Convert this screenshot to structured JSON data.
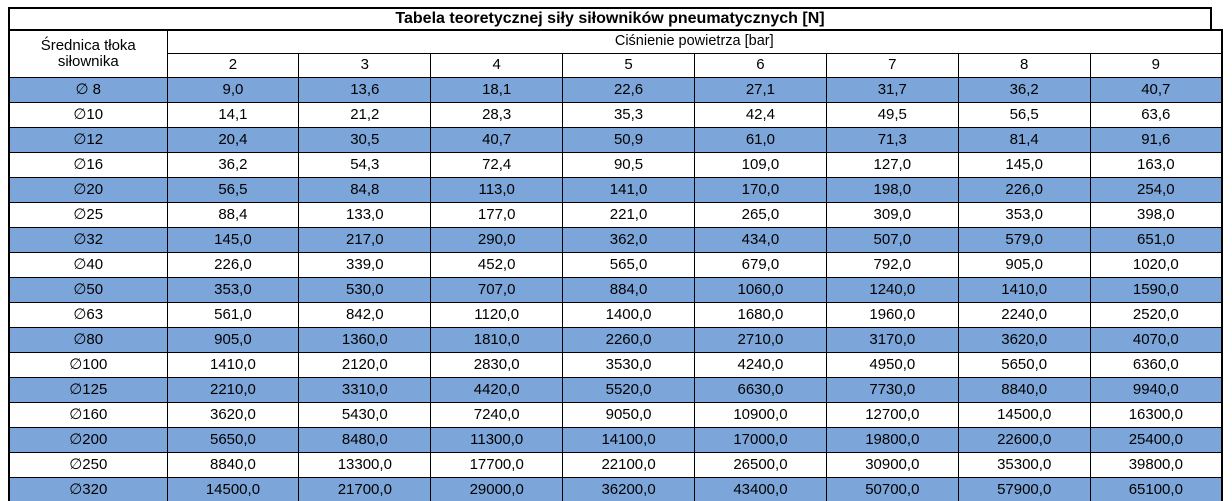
{
  "title": "Tabela teoretycznej siły siłowników pneumatycznych [N]",
  "table": {
    "row_header": "Średnica tłoka siłownika",
    "col_group_header": "Ciśnienie powietrza [bar]",
    "pressures": [
      "2",
      "3",
      "4",
      "5",
      "6",
      "7",
      "8",
      "9"
    ],
    "rows": [
      {
        "diameter": "∅ 8",
        "values": [
          "9,0",
          "13,6",
          "18,1",
          "22,6",
          "27,1",
          "31,7",
          "36,2",
          "40,7"
        ]
      },
      {
        "diameter": "∅10",
        "values": [
          "14,1",
          "21,2",
          "28,3",
          "35,3",
          "42,4",
          "49,5",
          "56,5",
          "63,6"
        ]
      },
      {
        "diameter": "∅12",
        "values": [
          "20,4",
          "30,5",
          "40,7",
          "50,9",
          "61,0",
          "71,3",
          "81,4",
          "91,6"
        ]
      },
      {
        "diameter": "∅16",
        "values": [
          "36,2",
          "54,3",
          "72,4",
          "90,5",
          "109,0",
          "127,0",
          "145,0",
          "163,0"
        ]
      },
      {
        "diameter": "∅20",
        "values": [
          "56,5",
          "84,8",
          "113,0",
          "141,0",
          "170,0",
          "198,0",
          "226,0",
          "254,0"
        ]
      },
      {
        "diameter": "∅25",
        "values": [
          "88,4",
          "133,0",
          "177,0",
          "221,0",
          "265,0",
          "309,0",
          "353,0",
          "398,0"
        ]
      },
      {
        "diameter": "∅32",
        "values": [
          "145,0",
          "217,0",
          "290,0",
          "362,0",
          "434,0",
          "507,0",
          "579,0",
          "651,0"
        ]
      },
      {
        "diameter": "∅40",
        "values": [
          "226,0",
          "339,0",
          "452,0",
          "565,0",
          "679,0",
          "792,0",
          "905,0",
          "1020,0"
        ]
      },
      {
        "diameter": "∅50",
        "values": [
          "353,0",
          "530,0",
          "707,0",
          "884,0",
          "1060,0",
          "1240,0",
          "1410,0",
          "1590,0"
        ]
      },
      {
        "diameter": "∅63",
        "values": [
          "561,0",
          "842,0",
          "1120,0",
          "1400,0",
          "1680,0",
          "1960,0",
          "2240,0",
          "2520,0"
        ]
      },
      {
        "diameter": "∅80",
        "values": [
          "905,0",
          "1360,0",
          "1810,0",
          "2260,0",
          "2710,0",
          "3170,0",
          "3620,0",
          "4070,0"
        ]
      },
      {
        "diameter": "∅100",
        "values": [
          "1410,0",
          "2120,0",
          "2830,0",
          "3530,0",
          "4240,0",
          "4950,0",
          "5650,0",
          "6360,0"
        ]
      },
      {
        "diameter": "∅125",
        "values": [
          "2210,0",
          "3310,0",
          "4420,0",
          "5520,0",
          "6630,0",
          "7730,0",
          "8840,0",
          "9940,0"
        ]
      },
      {
        "diameter": "∅160",
        "values": [
          "3620,0",
          "5430,0",
          "7240,0",
          "9050,0",
          "10900,0",
          "12700,0",
          "14500,0",
          "16300,0"
        ]
      },
      {
        "diameter": "∅200",
        "values": [
          "5650,0",
          "8480,0",
          "11300,0",
          "14100,0",
          "17000,0",
          "19800,0",
          "22600,0",
          "25400,0"
        ]
      },
      {
        "diameter": "∅250",
        "values": [
          "8840,0",
          "13300,0",
          "17700,0",
          "22100,0",
          "26500,0",
          "30900,0",
          "35300,0",
          "39800,0"
        ]
      },
      {
        "diameter": "∅320",
        "values": [
          "14500,0",
          "21700,0",
          "29000,0",
          "36200,0",
          "43400,0",
          "50700,0",
          "57900,0",
          "65100,0"
        ]
      }
    ]
  },
  "colors": {
    "stripe_blue": "#7CA6D9",
    "border": "#000000",
    "text": "#000000",
    "background": "#FFFFFF"
  },
  "chart_data": {
    "type": "table",
    "title": "Tabela teoretycznej siły siłowników pneumatycznych [N]",
    "row_header_label": "Średnica tłoka siłownika",
    "column_group_label": "Ciśnienie powietrza [bar]",
    "columns_pressure_bar": [
      2,
      3,
      4,
      5,
      6,
      7,
      8,
      9
    ],
    "rows_piston_diameter_mm": [
      8,
      10,
      12,
      16,
      20,
      25,
      32,
      40,
      50,
      63,
      80,
      100,
      125,
      160,
      200,
      250,
      320
    ],
    "values_force_N": [
      [
        9.0,
        13.6,
        18.1,
        22.6,
        27.1,
        31.7,
        36.2,
        40.7
      ],
      [
        14.1,
        21.2,
        28.3,
        35.3,
        42.4,
        49.5,
        56.5,
        63.6
      ],
      [
        20.4,
        30.5,
        40.7,
        50.9,
        61.0,
        71.3,
        81.4,
        91.6
      ],
      [
        36.2,
        54.3,
        72.4,
        90.5,
        109.0,
        127.0,
        145.0,
        163.0
      ],
      [
        56.5,
        84.8,
        113.0,
        141.0,
        170.0,
        198.0,
        226.0,
        254.0
      ],
      [
        88.4,
        133.0,
        177.0,
        221.0,
        265.0,
        309.0,
        353.0,
        398.0
      ],
      [
        145.0,
        217.0,
        290.0,
        362.0,
        434.0,
        507.0,
        579.0,
        651.0
      ],
      [
        226.0,
        339.0,
        452.0,
        565.0,
        679.0,
        792.0,
        905.0,
        1020.0
      ],
      [
        353.0,
        530.0,
        707.0,
        884.0,
        1060.0,
        1240.0,
        1410.0,
        1590.0
      ],
      [
        561.0,
        842.0,
        1120.0,
        1400.0,
        1680.0,
        1960.0,
        2240.0,
        2520.0
      ],
      [
        905.0,
        1360.0,
        1810.0,
        2260.0,
        2710.0,
        3170.0,
        3620.0,
        4070.0
      ],
      [
        1410.0,
        2120.0,
        2830.0,
        3530.0,
        4240.0,
        4950.0,
        5650.0,
        6360.0
      ],
      [
        2210.0,
        3310.0,
        4420.0,
        5520.0,
        6630.0,
        7730.0,
        8840.0,
        9940.0
      ],
      [
        3620.0,
        5430.0,
        7240.0,
        9050.0,
        10900.0,
        12700.0,
        14500.0,
        16300.0
      ],
      [
        5650.0,
        8480.0,
        11300.0,
        14100.0,
        17000.0,
        19800.0,
        22600.0,
        25400.0
      ],
      [
        8840.0,
        13300.0,
        17700.0,
        22100.0,
        26500.0,
        30900.0,
        35300.0,
        39800.0
      ],
      [
        14500.0,
        21700.0,
        29000.0,
        36200.0,
        43400.0,
        50700.0,
        57900.0,
        65100.0
      ]
    ]
  }
}
